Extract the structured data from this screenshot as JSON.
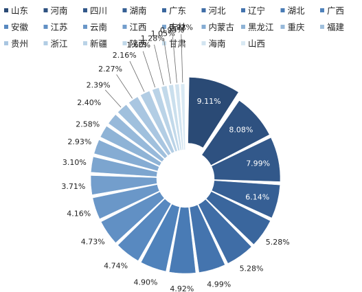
{
  "chart_data": {
    "type": "pie",
    "variant": "exploded-donut",
    "title": "",
    "legend_position": "top",
    "categories": [
      "山东",
      "河南",
      "四川",
      "湖南",
      "广东",
      "河北",
      "辽宁",
      "湖北",
      "广西",
      "安徽",
      "江苏",
      "云南",
      "江西",
      "吉林",
      "内蒙古",
      "黑龙江",
      "重庆",
      "福建",
      "贵州",
      "浙江",
      "新疆",
      "陕西",
      "甘肃",
      "海南",
      "山西"
    ],
    "values": [
      9.11,
      8.08,
      7.99,
      6.14,
      5.28,
      5.28,
      4.99,
      4.92,
      4.9,
      4.74,
      4.73,
      4.16,
      3.71,
      3.1,
      2.93,
      2.58,
      2.4,
      2.39,
      2.27,
      2.16,
      1.6,
      1.28,
      1.05,
      0.95,
      0.92
    ],
    "labels": [
      "9.11%",
      "8.08%",
      "7.99%",
      "6.14%",
      "5.28%",
      "5.28%",
      "4.99%",
      "4.92%",
      "4.90%",
      "4.74%",
      "4.73%",
      "4.16%",
      "3.71%",
      "3.10%",
      "2.93%",
      "2.58%",
      "2.40%",
      "2.39%",
      "2.27%",
      "2.16%",
      "1.60%",
      "1.28%",
      "1.05%",
      "0.95%",
      "0.92%"
    ],
    "colors": [
      "#2a4a75",
      "#2e5180",
      "#32588a",
      "#365f94",
      "#3a669d",
      "#3f6da6",
      "#4474ae",
      "#497bb5",
      "#4f82bb",
      "#5889c0",
      "#6190c4",
      "#6a97c8",
      "#739ecc",
      "#7ca5cf",
      "#85acd3",
      "#8eb3d6",
      "#97b9da",
      "#a0c0dd",
      "#a9c6e1",
      "#b2cde4",
      "#bad3e7",
      "#c2d9ea",
      "#cadfed",
      "#d2e4f0",
      "#d9e9f3"
    ],
    "units": "%"
  }
}
